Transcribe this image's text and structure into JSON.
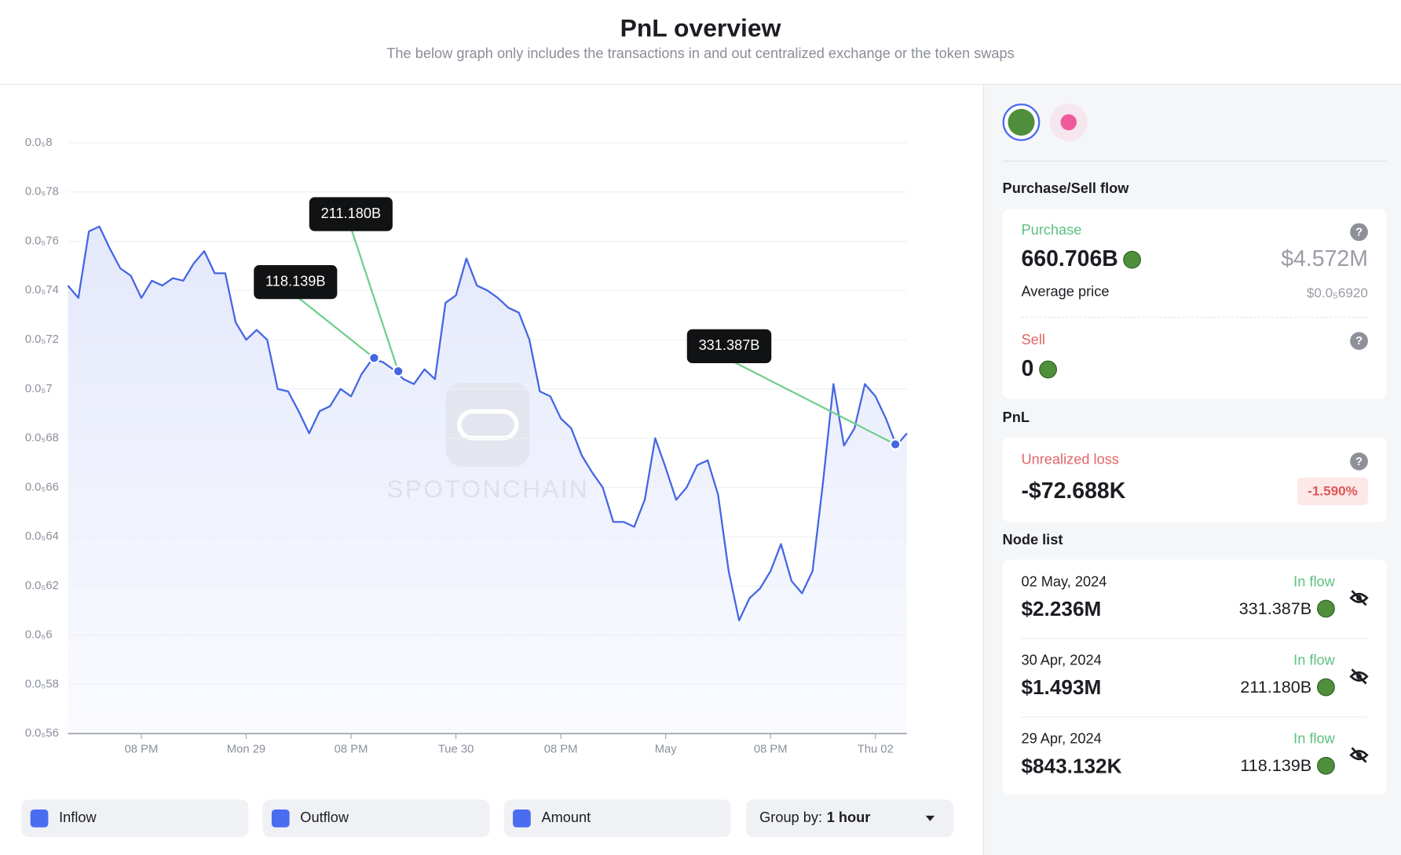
{
  "header": {
    "title": "PnL overview",
    "subtitle": "The below graph only includes the transactions in and out centralized exchange or the token swaps"
  },
  "chart_data": {
    "type": "line",
    "watermark": "SPOTONCHAIN",
    "color": "#4466e3",
    "grid": true,
    "x": [
      0,
      1,
      2,
      3,
      4,
      5,
      6,
      7,
      8,
      9,
      10,
      11,
      12,
      13,
      14,
      15,
      16,
      17,
      18,
      19,
      20,
      21,
      22,
      23,
      24,
      25,
      26,
      27,
      28,
      29,
      30,
      31,
      32,
      33,
      34,
      35,
      36,
      37,
      38,
      39,
      40,
      41,
      42,
      43,
      44,
      45,
      46,
      47,
      48,
      49,
      50,
      51,
      52,
      53,
      54,
      55,
      56,
      57,
      58,
      59,
      60,
      61,
      62,
      63,
      64,
      65,
      66,
      67,
      68,
      69,
      70,
      71,
      72,
      73,
      74,
      75,
      76,
      77,
      78,
      79,
      80
    ],
    "values": [
      7.42e-06,
      7.37e-06,
      7.64e-06,
      7.66e-06,
      7.57e-06,
      7.49e-06,
      7.46e-06,
      7.37e-06,
      7.44e-06,
      7.42e-06,
      7.45e-06,
      7.44e-06,
      7.51e-06,
      7.56e-06,
      7.47e-06,
      7.47e-06,
      7.27e-06,
      7.2e-06,
      7.24e-06,
      7.2e-06,
      7e-06,
      6.99e-06,
      6.91e-06,
      6.82e-06,
      6.91e-06,
      6.93e-06,
      7e-06,
      6.97e-06,
      7.06e-06,
      7.12e-06,
      7.11e-06,
      7.08e-06,
      7.04e-06,
      7.02e-06,
      7.08e-06,
      7.04e-06,
      7.35e-06,
      7.38e-06,
      7.53e-06,
      7.42e-06,
      7.4e-06,
      7.37e-06,
      7.33e-06,
      7.31e-06,
      7.2e-06,
      6.99e-06,
      6.97e-06,
      6.88e-06,
      6.84e-06,
      6.73e-06,
      6.66e-06,
      6.6e-06,
      6.46e-06,
      6.46e-06,
      6.44e-06,
      6.55e-06,
      6.8e-06,
      6.68e-06,
      6.55e-06,
      6.6e-06,
      6.69e-06,
      6.71e-06,
      6.57e-06,
      6.26e-06,
      6.06e-06,
      6.15e-06,
      6.19e-06,
      6.26e-06,
      6.37e-06,
      6.22e-06,
      6.17e-06,
      6.26e-06,
      6.62e-06,
      7.02e-06,
      6.77e-06,
      6.84e-06,
      7.02e-06,
      6.97e-06,
      6.88e-06,
      6.77e-06,
      6.82e-06
    ],
    "xlim": [
      0,
      80
    ],
    "xticks": [
      {
        "value": 7,
        "label": "08 PM"
      },
      {
        "value": 17,
        "label": "Mon 29"
      },
      {
        "value": 27,
        "label": "08 PM"
      },
      {
        "value": 37,
        "label": "Tue 30"
      },
      {
        "value": 47,
        "label": "08 PM"
      },
      {
        "value": 57,
        "label": "May"
      },
      {
        "value": 67,
        "label": "08 PM"
      },
      {
        "value": 77,
        "label": "Thu 02"
      }
    ],
    "ylim": [
      5.6e-06,
      8e-06
    ],
    "yticks": [
      {
        "value": 5.6e-06,
        "label": "0.0₅56"
      },
      {
        "value": 5.8e-06,
        "label": "0.0₅58"
      },
      {
        "value": 6e-06,
        "label": "0.0₅6"
      },
      {
        "value": 6.2e-06,
        "label": "0.0₅62"
      },
      {
        "value": 6.4e-06,
        "label": "0.0₅64"
      },
      {
        "value": 6.6e-06,
        "label": "0.0₅66"
      },
      {
        "value": 6.8e-06,
        "label": "0.0₅68"
      },
      {
        "value": 7e-06,
        "label": "0.0₅7"
      },
      {
        "value": 7.2e-06,
        "label": "0.0₅72"
      },
      {
        "value": 7.4e-06,
        "label": "0.0₅74"
      },
      {
        "value": 7.6e-06,
        "label": "0.0₅76"
      },
      {
        "value": 7.8e-06,
        "label": "0.0₅78"
      },
      {
        "value": 8e-06,
        "label": "0.0₅8"
      }
    ],
    "markers": {
      "x": [
        29.2,
        31.5,
        78.9
      ],
      "values": [
        7.126e-06,
        7.072e-06,
        6.775e-06
      ],
      "labels": [
        "118.139B",
        "211.180B",
        "331.387B"
      ]
    }
  },
  "controls": {
    "checkboxes": [
      "Inflow",
      "Outflow",
      "Amount"
    ],
    "group_by_label": "Group by:",
    "group_by_value": "1 hour"
  },
  "panel": {
    "flow_title": "Purchase/Sell flow",
    "purchase": {
      "label": "Purchase",
      "amount": "660.706B",
      "usd": "$4.572M",
      "avg_label": "Average price",
      "avg_price": "$0.0₅6920"
    },
    "sell": {
      "label": "Sell",
      "amount": "0"
    },
    "pnl_title": "PnL",
    "pnl": {
      "label": "Unrealized loss",
      "value": "-$72.688K",
      "pct": "-1.590%"
    },
    "node_title": "Node list",
    "nodes": [
      {
        "date": "02 May, 2024",
        "flow": "In flow",
        "usd": "$2.236M",
        "amount": "331.387B"
      },
      {
        "date": "30 Apr, 2024",
        "flow": "In flow",
        "usd": "$1.493M",
        "amount": "211.180B"
      },
      {
        "date": "29 Apr, 2024",
        "flow": "In flow",
        "usd": "$843.132K",
        "amount": "118.139B"
      }
    ]
  }
}
